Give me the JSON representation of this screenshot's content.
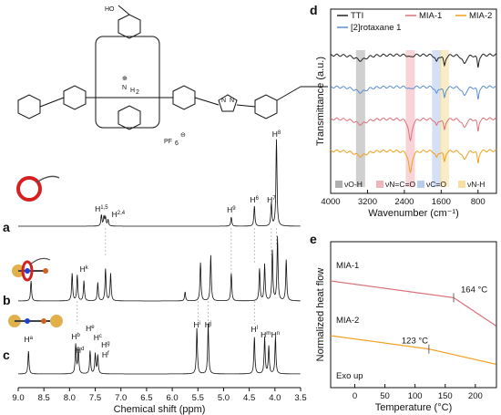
{
  "panels": {
    "a": "a",
    "b": "b",
    "c": "c",
    "d": "d",
    "e": "e"
  },
  "nmr": {
    "xlabel": "Chemical shift (ppm)",
    "xticks": [
      "9.0",
      "8.5",
      "8.0",
      "7.5",
      "7.0",
      "6.5",
      "6.0",
      "5.5",
      "5.0",
      "4.5",
      "4.0",
      "3.5"
    ],
    "labels_a": [
      {
        "text": "H",
        "sup": "1,5"
      },
      {
        "text": "H",
        "sup": "2,4"
      },
      {
        "text": "H",
        "sup": "9"
      },
      {
        "text": "H",
        "sup": "6"
      },
      {
        "text": "H",
        "sup": "7"
      },
      {
        "text": "H",
        "sup": "8"
      }
    ],
    "labels_b": [
      {
        "text": "H",
        "sup": "k"
      }
    ],
    "labels_c": [
      {
        "text": "H",
        "sup": "a"
      },
      {
        "text": "H",
        "sup": "b"
      },
      {
        "text": "H",
        "sup": "e"
      },
      {
        "text": "H",
        "sup": "c"
      },
      {
        "text": "H",
        "sup": "g"
      },
      {
        "text": "H",
        "sup": "d"
      },
      {
        "text": "H",
        "sup": "f"
      },
      {
        "text": "H",
        "sup": "i"
      },
      {
        "text": "H",
        "sup": "j"
      },
      {
        "text": "H",
        "sup": "l"
      },
      {
        "text": "H",
        "sup": "m"
      },
      {
        "text": "H",
        "sup": "n"
      }
    ]
  },
  "structure_labels": [
    "HO",
    "N",
    "N",
    "N",
    "PF",
    "6",
    "⊖",
    "⊕",
    "H",
    "2"
  ],
  "chart_data": [
    {
      "type": "line",
      "id": "d",
      "xlabel": "Wavenumber (cm⁻¹)",
      "ylabel": "Transmittance (a.u.)",
      "xticks": [
        4000,
        3200,
        2400,
        1600,
        800
      ],
      "xlim": [
        4000,
        400
      ],
      "series": [
        {
          "name": "TTI",
          "color": "#222222"
        },
        {
          "name": "MIA-1",
          "color": "#e0707a"
        },
        {
          "name": "MIA-2",
          "color": "#f0a020"
        },
        {
          "name": "[2]rotaxane 1",
          "color": "#5b8fd0"
        }
      ],
      "bands": [
        {
          "label": "νO-H",
          "center": 3350,
          "color": "#b0b0b0"
        },
        {
          "label": "νN=C=O",
          "center": 2270,
          "color": "#f3b5bd"
        },
        {
          "label": "νC=O",
          "center": 1700,
          "color": "#b8cdee"
        },
        {
          "label": "νN-H",
          "center": 1530,
          "color": "#f6dfa0"
        }
      ]
    },
    {
      "type": "line",
      "id": "e",
      "xlabel": "Temperature (°C)",
      "ylabel": "Normalized heat flow",
      "xticks": [
        0,
        50,
        100,
        150,
        200
      ],
      "xlim": [
        -40,
        235
      ],
      "series": [
        {
          "name": "MIA-1",
          "color": "#d9707c",
          "tg": "164 °C"
        },
        {
          "name": "MIA-2",
          "color": "#f0a020",
          "tg": "123 °C"
        }
      ],
      "annotation": "Exo up"
    }
  ]
}
